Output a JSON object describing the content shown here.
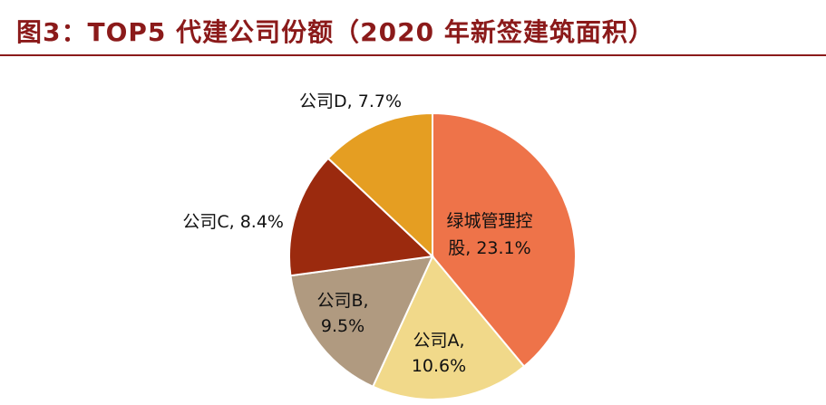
{
  "chart_data": {
    "type": "pie",
    "title": "图3：TOP5 代建公司份额（2020 年新签建筑面积）",
    "slices": [
      {
        "name": "绿城管理控股",
        "value": 23.1,
        "label_lines": [
          "绿城管理控",
          "股, 23.1%"
        ],
        "color": "#EE7349"
      },
      {
        "name": "公司A",
        "value": 10.6,
        "label_lines": [
          "公司A,",
          "10.6%"
        ],
        "color": "#F1D98A"
      },
      {
        "name": "公司B",
        "value": 9.5,
        "label_lines": [
          "公司B,",
          "9.5%"
        ],
        "color": "#B09A80"
      },
      {
        "name": "公司C",
        "value": 8.4,
        "label_lines": [
          "公司C, 8.4%"
        ],
        "color": "#9B2A0E"
      },
      {
        "name": "公司D",
        "value": 7.7,
        "label_lines": [
          "公司D, 7.7%"
        ],
        "color": "#E59E22"
      }
    ]
  }
}
